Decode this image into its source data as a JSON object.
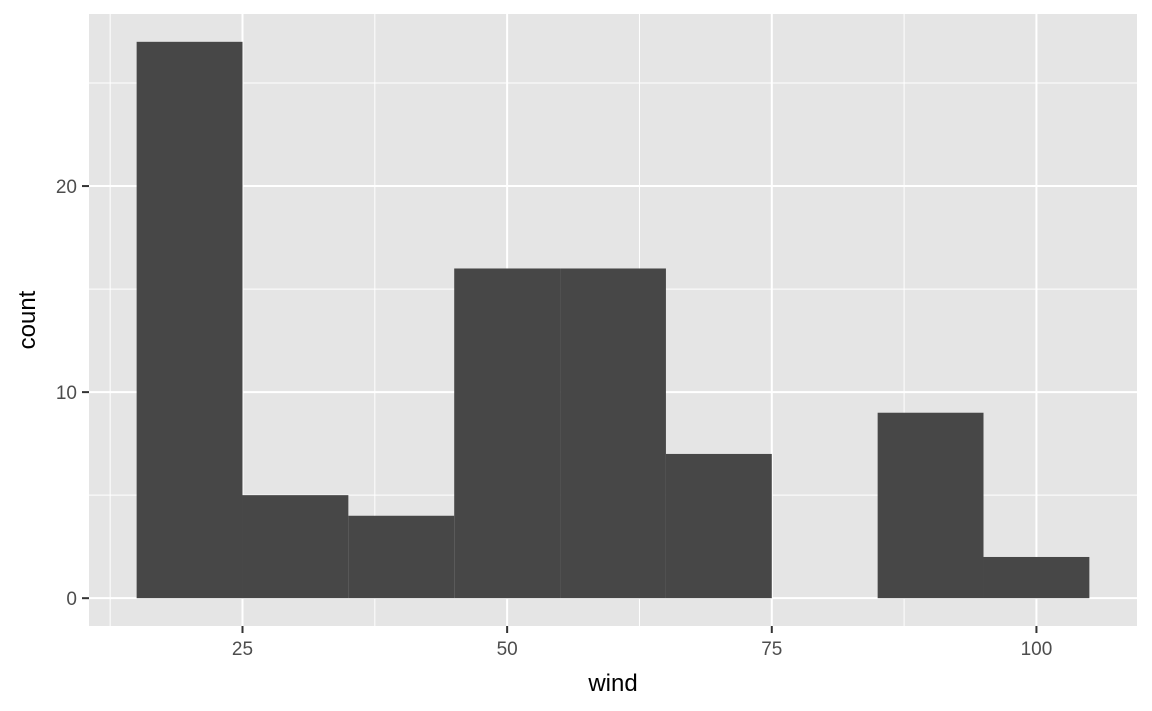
{
  "chart_data": {
    "type": "bar",
    "subtype": "histogram",
    "title": "",
    "xlabel": "wind",
    "ylabel": "count",
    "bins": [
      {
        "xmin": 15,
        "xmax": 25,
        "count": 27
      },
      {
        "xmin": 25,
        "xmax": 35,
        "count": 5
      },
      {
        "xmin": 35,
        "xmax": 45,
        "count": 4
      },
      {
        "xmin": 45,
        "xmax": 55,
        "count": 16
      },
      {
        "xmin": 55,
        "xmax": 65,
        "count": 16
      },
      {
        "xmin": 65,
        "xmax": 75,
        "count": 7
      },
      {
        "xmin": 75,
        "xmax": 85,
        "count": 0
      },
      {
        "xmin": 85,
        "xmax": 95,
        "count": 9
      },
      {
        "xmin": 95,
        "xmax": 105,
        "count": 2
      }
    ],
    "xlim": [
      10.5,
      109.5
    ],
    "ylim": [
      -1.35,
      28.35
    ],
    "x_ticks": [
      25,
      50,
      75,
      100
    ],
    "x_minor_ticks": [
      12.5,
      37.5,
      62.5,
      87.5
    ],
    "y_ticks": [
      0,
      10,
      20
    ],
    "y_minor_ticks": [
      5,
      15,
      25
    ],
    "grid": true,
    "legend": "none",
    "colors": {
      "panel_background": "#e5e5e5",
      "grid_line": "#ffffff",
      "bar_fill": "#474747",
      "tick_label": "#4d4d4d",
      "tick_mark": "#333333"
    }
  }
}
